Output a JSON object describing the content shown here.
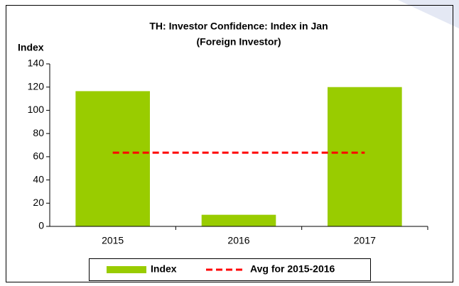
{
  "chart_data": {
    "type": "bar",
    "title": [
      "TH: Investor Confidence: Index in Jan",
      "(Foreign Investor)"
    ],
    "y_label": "Index",
    "categories": [
      "2015",
      "2016",
      "2017"
    ],
    "series": [
      {
        "name": "Index",
        "color": "#99cc00",
        "type": "bar",
        "values": [
          116.5,
          10,
          120
        ]
      },
      {
        "name": "Avg for 2015-2016",
        "color": "#ff0000",
        "type": "line",
        "dashed": true,
        "values": [
          63.5,
          63.5,
          63.5
        ]
      }
    ],
    "ylim": [
      0,
      140
    ],
    "yticks": [
      0,
      20,
      40,
      60,
      80,
      100,
      120,
      140
    ],
    "grid": false,
    "legend": "bottom"
  }
}
